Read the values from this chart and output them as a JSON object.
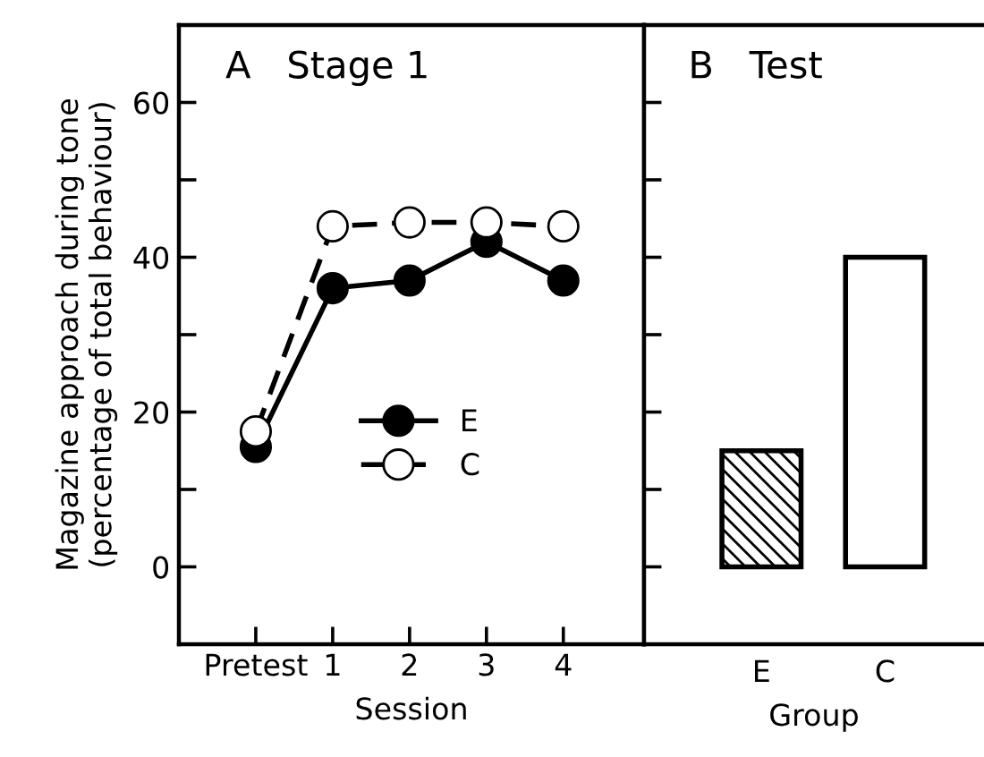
{
  "chart_data": [
    {
      "type": "line",
      "title": "A   Stage 1",
      "xlabel": "Session",
      "ylabel": "Magazine approach during tone\n(percentage of total behaviour)",
      "categories": [
        "Pretest",
        "1",
        "2",
        "3",
        "4"
      ],
      "series": [
        {
          "name": "E",
          "color": "#000000",
          "values": [
            15.5,
            36,
            37,
            42,
            37
          ],
          "line_style": "solid"
        },
        {
          "name": "C",
          "color": "#000000",
          "values": [
            17.5,
            44,
            44.5,
            44.5,
            44
          ],
          "line_style": "dashed"
        }
      ],
      "marker": "circle",
      "ylim": [
        -10,
        70
      ],
      "yticks": [
        0,
        {
          "value": 10,
          "label": null
        },
        20,
        {
          "value": 30,
          "label": null
        },
        40,
        {
          "value": 50,
          "label": null
        },
        60
      ],
      "legend": "lower center",
      "grid": false
    },
    {
      "type": "bar",
      "title": "B   Test",
      "xlabel": "Group",
      "categories": [
        "E",
        "C"
      ],
      "values": [
        15,
        40
      ],
      "colors": [
        "#000000",
        "#ffffff"
      ],
      "ylim": [
        -10,
        70
      ],
      "yticks": [
        {
          "value": 0,
          "label": null
        },
        {
          "value": 10,
          "label": null
        },
        {
          "value": 20,
          "label": null
        },
        {
          "value": 30,
          "label": null
        },
        {
          "value": 40,
          "label": null
        },
        {
          "value": 50,
          "label": null
        },
        {
          "value": 60,
          "label": null
        }
      ],
      "tick_labels": "x",
      "grid": false
    }
  ]
}
